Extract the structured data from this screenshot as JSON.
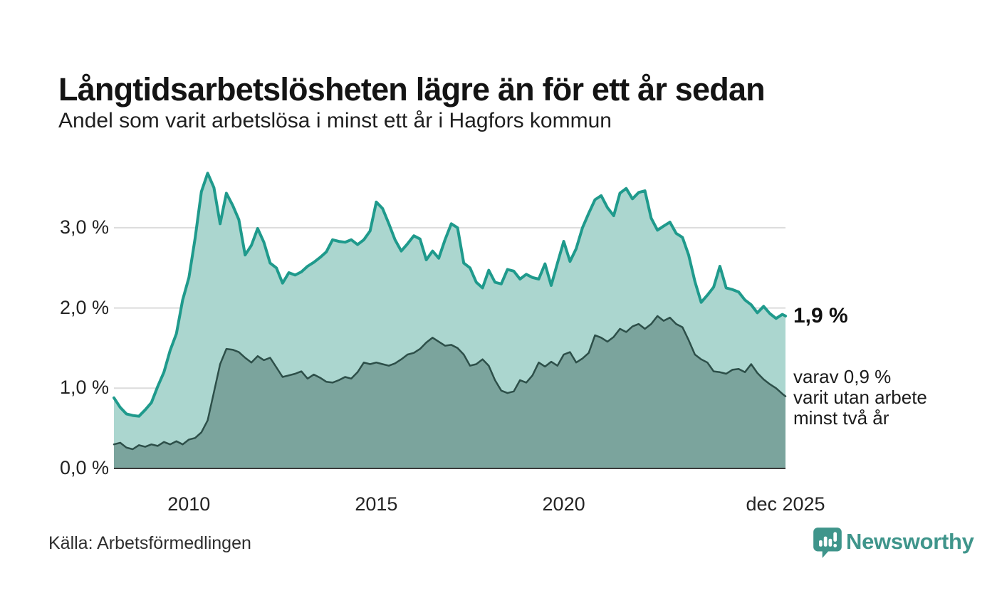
{
  "header": {
    "title": "Långtidsarbetslösheten lägre än för ett år sedan",
    "subtitle": "Andel som varit arbetslösa i minst ett år i Hagfors kommun"
  },
  "chart_data": {
    "type": "area",
    "unit": "%",
    "x_range_months": 215,
    "x_start": "jan 2008",
    "x_ticks": [
      {
        "label": "2010",
        "month": 24
      },
      {
        "label": "2015",
        "month": 84
      },
      {
        "label": "2020",
        "month": 144
      },
      {
        "label": "dec 2025",
        "month": 215
      }
    ],
    "y_ticks": [
      {
        "label": "3,0 %",
        "value": 3
      },
      {
        "label": "2,0 %",
        "value": 2
      },
      {
        "label": "1,0 %",
        "value": 1
      },
      {
        "label": "0,0 %",
        "value": 0
      }
    ],
    "ylim": [
      0,
      3.8
    ],
    "grid": true,
    "legend_position": "none",
    "colors": {
      "grid": "#dcdcdc",
      "axis": "#3a3a3a"
    },
    "series": [
      {
        "name": "arbetslösa minst ett år",
        "line_color": "#1f9a8c",
        "fill_color": "#abd6cf",
        "line_width": 4,
        "values": [
          0.88,
          0.76,
          0.68,
          0.66,
          0.65,
          0.73,
          0.82,
          1.02,
          1.2,
          1.47,
          1.68,
          2.1,
          2.38,
          2.87,
          3.45,
          3.68,
          3.5,
          3.05,
          3.43,
          3.28,
          3.1,
          2.66,
          2.78,
          2.99,
          2.82,
          2.56,
          2.5,
          2.31,
          2.44,
          2.41,
          2.45,
          2.52,
          2.57,
          2.63,
          2.7,
          2.85,
          2.83,
          2.82,
          2.85,
          2.79,
          2.85,
          2.96,
          3.32,
          3.24,
          3.05,
          2.85,
          2.71,
          2.8,
          2.9,
          2.86,
          2.6,
          2.71,
          2.62,
          2.85,
          3.05,
          3.0,
          2.56,
          2.5,
          2.32,
          2.25,
          2.47,
          2.32,
          2.3,
          2.48,
          2.46,
          2.36,
          2.42,
          2.38,
          2.36,
          2.55,
          2.28,
          2.56,
          2.83,
          2.58,
          2.74,
          3.0,
          3.18,
          3.35,
          3.4,
          3.25,
          3.15,
          3.43,
          3.49,
          3.36,
          3.44,
          3.46,
          3.12,
          2.97,
          3.02,
          3.07,
          2.93,
          2.88,
          2.66,
          2.33,
          2.07,
          2.16,
          2.26,
          2.52,
          2.25,
          2.23,
          2.2,
          2.1,
          2.04,
          1.94,
          2.02,
          1.93,
          1.87,
          1.92,
          1.9
        ]
      },
      {
        "name": "arbetslösa minst två år",
        "line_color": "#2d4f49",
        "fill_color": "#7ba49d",
        "line_width": 2.5,
        "values": [
          0.3,
          0.32,
          0.26,
          0.24,
          0.29,
          0.27,
          0.3,
          0.28,
          0.33,
          0.3,
          0.34,
          0.3,
          0.36,
          0.38,
          0.45,
          0.6,
          0.95,
          1.3,
          1.49,
          1.48,
          1.45,
          1.38,
          1.32,
          1.4,
          1.35,
          1.38,
          1.26,
          1.14,
          1.16,
          1.18,
          1.21,
          1.12,
          1.17,
          1.13,
          1.08,
          1.07,
          1.1,
          1.14,
          1.12,
          1.2,
          1.32,
          1.3,
          1.32,
          1.3,
          1.28,
          1.31,
          1.36,
          1.42,
          1.44,
          1.49,
          1.57,
          1.63,
          1.58,
          1.53,
          1.54,
          1.5,
          1.42,
          1.28,
          1.3,
          1.36,
          1.28,
          1.1,
          0.97,
          0.94,
          0.96,
          1.1,
          1.07,
          1.16,
          1.32,
          1.27,
          1.33,
          1.28,
          1.42,
          1.45,
          1.32,
          1.37,
          1.44,
          1.66,
          1.63,
          1.58,
          1.64,
          1.74,
          1.7,
          1.77,
          1.8,
          1.74,
          1.8,
          1.9,
          1.84,
          1.88,
          1.8,
          1.76,
          1.6,
          1.42,
          1.36,
          1.32,
          1.21,
          1.2,
          1.18,
          1.23,
          1.24,
          1.2,
          1.3,
          1.19,
          1.11,
          1.05,
          1.0,
          0.93,
          0.9
        ]
      }
    ],
    "annotation": {
      "value_label": "1,9 %",
      "value": 1.9,
      "sub_lines": [
        "varav 0,9 %",
        "varit utan arbete",
        "minst två år"
      ],
      "sub_anchor_value": 0.9
    }
  },
  "footer": {
    "source": "Källa: Arbetsförmedlingen",
    "brand": "Newsworthy",
    "brand_color": "#3f958b"
  }
}
